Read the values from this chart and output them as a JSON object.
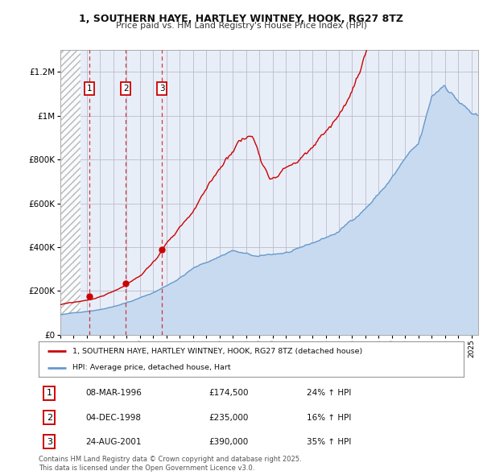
{
  "title": "1, SOUTHERN HAYE, HARTLEY WINTNEY, HOOK, RG27 8TZ",
  "subtitle": "Price paid vs. HM Land Registry's House Price Index (HPI)",
  "xlim_start": 1994.0,
  "xlim_end": 2025.5,
  "ylim_min": 0,
  "ylim_max": 1300000,
  "yticks": [
    0,
    200000,
    400000,
    600000,
    800000,
    1000000,
    1200000
  ],
  "hatch_region_end": 1995.5,
  "transactions": [
    {
      "label": "1",
      "date_num": 1996.19,
      "price": 174500,
      "pct": "24%",
      "date_str": "08-MAR-1996"
    },
    {
      "label": "2",
      "date_num": 1998.92,
      "price": 235000,
      "pct": "16%",
      "date_str": "04-DEC-1998"
    },
    {
      "label": "3",
      "date_num": 2001.65,
      "price": 390000,
      "pct": "35%",
      "date_str": "24-AUG-2001"
    }
  ],
  "red_line_color": "#cc0000",
  "blue_line_color": "#6699cc",
  "blue_fill_color": "#c8daf0",
  "background_color": "#e8eef8",
  "grid_color": "#bbbbcc",
  "legend_label_red": "1, SOUTHERN HAYE, HARTLEY WINTNEY, HOOK, RG27 8TZ (detached house)",
  "legend_label_blue": "HPI: Average price, detached house, Hart",
  "footnote": "Contains HM Land Registry data © Crown copyright and database right 2025.\nThis data is licensed under the Open Government Licence v3.0."
}
